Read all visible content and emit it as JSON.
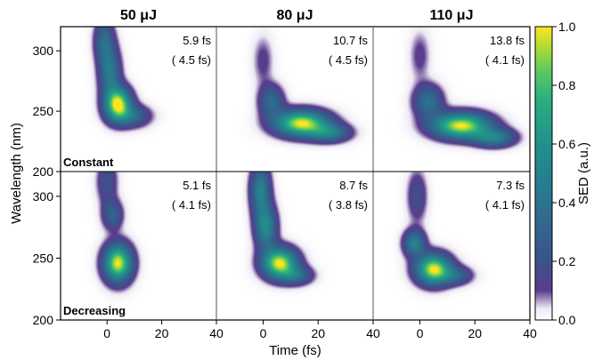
{
  "chart_data": {
    "type": "heatmap",
    "xlabel": "Time (fs)",
    "ylabel": "Wavelength (nm)",
    "xlim": [
      -17,
      40
    ],
    "ylim": [
      200,
      320
    ],
    "xticks": [
      0,
      20,
      40
    ],
    "yticks": [
      200,
      250,
      300
    ],
    "colorbar": {
      "label": "SED (a.u.)",
      "range": [
        0,
        1
      ],
      "ticks": [
        "0.0",
        "0.2",
        "0.4",
        "0.6",
        "0.8",
        "1.0"
      ],
      "colormap": "viridis-white"
    },
    "columns": [
      "50 μJ",
      "80 μJ",
      "110 μJ"
    ],
    "rows": [
      "Constant",
      "Decreasing"
    ],
    "panels": [
      {
        "row": 0,
        "col": 0,
        "duration": "5.9 fs",
        "duration_alt": "( 4.5 fs)",
        "blobs": [
          {
            "t": 4,
            "wl": 256,
            "st": 3.2,
            "sw": 9,
            "amp": 1.0
          },
          {
            "t": 1,
            "wl": 282,
            "st": 2.6,
            "sw": 14,
            "amp": 0.45
          },
          {
            "t": -1,
            "wl": 308,
            "st": 2.4,
            "sw": 12,
            "amp": 0.35
          },
          {
            "t": 9,
            "wl": 246,
            "st": 4.5,
            "sw": 6,
            "amp": 0.35
          }
        ]
      },
      {
        "row": 0,
        "col": 1,
        "duration": "10.7 fs",
        "duration_alt": "( 4.5 fs)",
        "blobs": [
          {
            "t": 14,
            "wl": 240,
            "st": 6.5,
            "sw": 7,
            "amp": 1.0
          },
          {
            "t": 3,
            "wl": 258,
            "st": 3,
            "sw": 9,
            "amp": 0.35
          },
          {
            "t": 24,
            "wl": 232,
            "st": 5,
            "sw": 5,
            "amp": 0.45
          },
          {
            "t": 0,
            "wl": 292,
            "st": 2.5,
            "sw": 14,
            "amp": 0.12
          }
        ]
      },
      {
        "row": 0,
        "col": 2,
        "duration": "13.8 fs",
        "duration_alt": "( 4.1 fs)",
        "blobs": [
          {
            "t": 15,
            "wl": 238,
            "st": 7,
            "sw": 7,
            "amp": 1.0
          },
          {
            "t": 3,
            "wl": 258,
            "st": 3.5,
            "sw": 9,
            "amp": 0.4
          },
          {
            "t": 27,
            "wl": 228,
            "st": 5,
            "sw": 5,
            "amp": 0.5
          },
          {
            "t": 0,
            "wl": 296,
            "st": 2.5,
            "sw": 14,
            "amp": 0.12
          }
        ]
      },
      {
        "row": 1,
        "col": 0,
        "duration": "5.1 fs",
        "duration_alt": "( 4.1 fs)",
        "blobs": [
          {
            "t": 4,
            "wl": 246,
            "st": 3.4,
            "sw": 10,
            "amp": 1.0
          },
          {
            "t": 2,
            "wl": 285,
            "st": 2.5,
            "sw": 8,
            "amp": 0.3
          },
          {
            "t": 0,
            "wl": 312,
            "st": 2.5,
            "sw": 12,
            "amp": 0.22
          }
        ]
      },
      {
        "row": 1,
        "col": 1,
        "duration": "8.7 fs",
        "duration_alt": "( 3.8 fs)",
        "blobs": [
          {
            "t": 6,
            "wl": 246,
            "st": 4.2,
            "sw": 8,
            "amp": 1.0
          },
          {
            "t": 1,
            "wl": 275,
            "st": 2.6,
            "sw": 12,
            "amp": 0.55
          },
          {
            "t": -1,
            "wl": 305,
            "st": 2.4,
            "sw": 14,
            "amp": 0.5
          },
          {
            "t": 12,
            "wl": 236,
            "st": 4,
            "sw": 5,
            "amp": 0.35
          }
        ]
      },
      {
        "row": 1,
        "col": 2,
        "duration": "7.3 fs",
        "duration_alt": "( 4.1 fs)",
        "blobs": [
          {
            "t": 5,
            "wl": 241,
            "st": 4.2,
            "sw": 8,
            "amp": 1.0
          },
          {
            "t": -2,
            "wl": 262,
            "st": 2.6,
            "sw": 7,
            "amp": 0.5
          },
          {
            "t": -1,
            "wl": 300,
            "st": 2.4,
            "sw": 14,
            "amp": 0.2
          },
          {
            "t": 13,
            "wl": 236,
            "st": 4,
            "sw": 5,
            "amp": 0.3
          }
        ]
      }
    ]
  }
}
